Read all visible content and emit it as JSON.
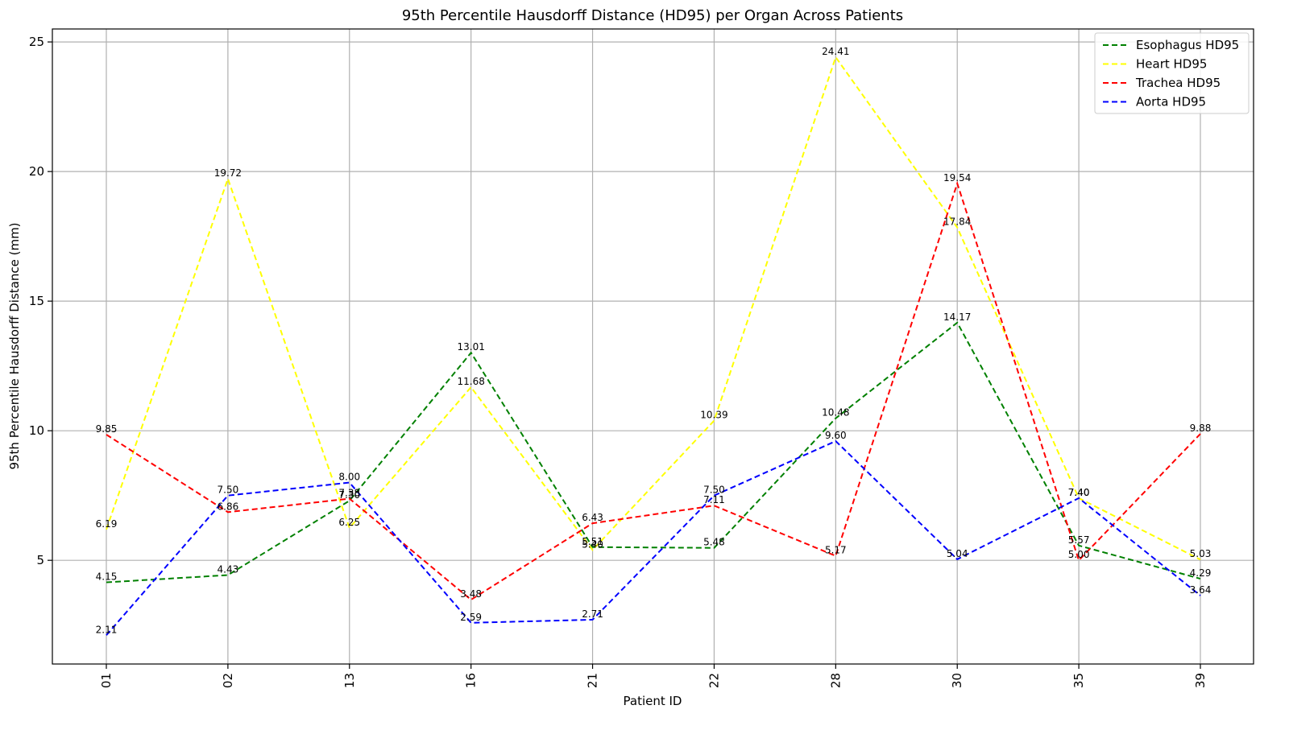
{
  "chart_data": {
    "type": "line",
    "title": "95th Percentile Hausdorff Distance (HD95) per Organ Across Patients",
    "xlabel": "Patient ID",
    "ylabel": "95th Percentile Hausdorff Distance (mm)",
    "categories": [
      "01",
      "02",
      "13",
      "16",
      "21",
      "22",
      "28",
      "30",
      "35",
      "39"
    ],
    "ylim": [
      1.0,
      25.5
    ],
    "yticks": [
      5,
      10,
      15,
      20,
      25
    ],
    "grid": true,
    "legend_position": "top-right",
    "line_style": "dashed",
    "series": [
      {
        "name": "Esophagus HD95",
        "color": "#008000",
        "values": [
          4.15,
          4.43,
          7.3,
          13.01,
          5.51,
          5.48,
          10.48,
          14.17,
          5.57,
          4.29
        ],
        "labels": [
          "4.15",
          "4.43",
          "7.30",
          "13.01",
          "5.51",
          "5.48",
          "10.48",
          "14.17",
          "5.57",
          "4.29"
        ]
      },
      {
        "name": "Heart HD95",
        "color": "#ffff00",
        "values": [
          6.19,
          19.72,
          6.25,
          11.68,
          5.4,
          10.39,
          24.41,
          17.84,
          7.4,
          5.03
        ],
        "labels": [
          "6.19",
          "19.72",
          "6.25",
          "11.68",
          "5.40",
          "10.39",
          "24.41",
          "17.84",
          "7.40",
          "5.03"
        ]
      },
      {
        "name": "Trachea HD95",
        "color": "#ff0000",
        "values": [
          9.85,
          6.86,
          7.38,
          3.48,
          6.43,
          7.11,
          5.17,
          19.54,
          5.0,
          9.88
        ],
        "labels": [
          "9.85",
          "6.86",
          "7.38",
          "3.48",
          "6.43",
          "7.11",
          "5.17",
          "19.54",
          "5.00",
          "9.88"
        ]
      },
      {
        "name": "Aorta HD95",
        "color": "#0000ff",
        "values": [
          2.11,
          7.5,
          8.0,
          2.59,
          2.71,
          7.5,
          9.6,
          5.04,
          7.4,
          3.64
        ],
        "labels": [
          "2.11",
          "7.50",
          "8.00",
          "2.59",
          "2.71",
          "7.50",
          "9.60",
          "5.04",
          "7.40",
          "3.64"
        ]
      }
    ]
  }
}
